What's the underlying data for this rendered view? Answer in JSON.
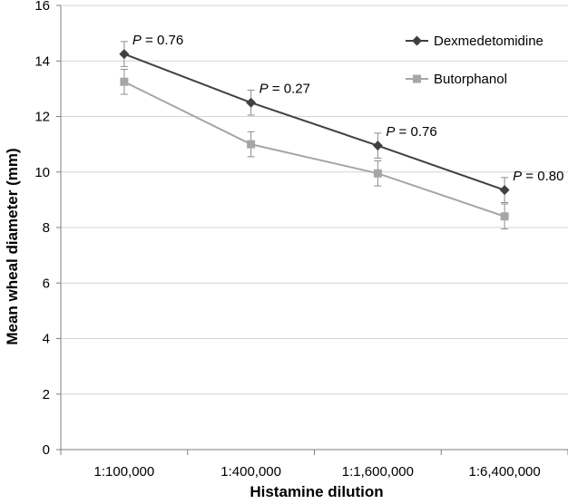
{
  "chart_data": {
    "type": "line",
    "title": "",
    "xlabel": "Histamine dilution",
    "ylabel": "Mean wheal diameter (mm)",
    "categories": [
      "1:100,000",
      "1:400,000",
      "1:1,600,000",
      "1:6,400,000"
    ],
    "ylim": [
      0,
      16
    ],
    "yticks": [
      0,
      2,
      4,
      6,
      8,
      10,
      12,
      14,
      16
    ],
    "grid": true,
    "legend_position": "top-right",
    "series": [
      {
        "name": "Dexmedetomidine",
        "values": [
          14.25,
          12.5,
          10.95,
          9.35
        ],
        "error": [
          0.45,
          0.45,
          0.45,
          0.45
        ],
        "marker": "diamond",
        "color": "#404040"
      },
      {
        "name": "Butorphanol",
        "values": [
          13.25,
          11.0,
          9.95,
          8.4
        ],
        "error": [
          0.45,
          0.45,
          0.45,
          0.45
        ],
        "marker": "square",
        "color": "#a6a6a6"
      }
    ],
    "annotations": [
      {
        "category_index": 0,
        "italic": "P",
        "text": " = 0.76"
      },
      {
        "category_index": 1,
        "italic": "P",
        "text": " = 0.27"
      },
      {
        "category_index": 2,
        "italic": "P",
        "text": " = 0.76"
      },
      {
        "category_index": 3,
        "italic": "P",
        "text": " = 0.80"
      }
    ]
  }
}
